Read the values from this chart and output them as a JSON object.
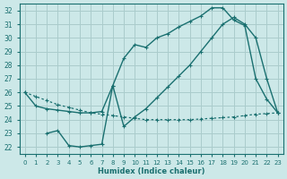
{
  "xlabel": "Humidex (Indice chaleur)",
  "bg_color": "#cce8e8",
  "grid_color": "#aacccc",
  "line_color": "#1a7070",
  "xlim": [
    -0.5,
    23.5
  ],
  "ylim": [
    21.5,
    32.5
  ],
  "xticks": [
    0,
    1,
    2,
    3,
    4,
    5,
    6,
    7,
    8,
    9,
    10,
    11,
    12,
    13,
    14,
    15,
    16,
    17,
    18,
    19,
    20,
    21,
    22,
    23
  ],
  "yticks": [
    22,
    23,
    24,
    25,
    26,
    27,
    28,
    29,
    30,
    31,
    32
  ],
  "line1_x": [
    0,
    1,
    2,
    3,
    4,
    5,
    6,
    7,
    8,
    9,
    10,
    11,
    12,
    13,
    14,
    15,
    16,
    17,
    18,
    19,
    20,
    21,
    22,
    23
  ],
  "line1_y": [
    26.0,
    25.7,
    25.4,
    25.1,
    24.9,
    24.7,
    24.5,
    24.4,
    24.3,
    24.2,
    24.1,
    24.0,
    24.0,
    24.0,
    24.0,
    24.0,
    24.05,
    24.1,
    24.15,
    24.2,
    24.3,
    24.4,
    24.45,
    24.5
  ],
  "line2_x": [
    0,
    1,
    2,
    3,
    4,
    5,
    6,
    7,
    8,
    9,
    10,
    11,
    12,
    13,
    14,
    15,
    16,
    17,
    18,
    19,
    20,
    21,
    22,
    23
  ],
  "line2_y": [
    26.0,
    25.0,
    24.8,
    24.7,
    24.6,
    24.5,
    24.5,
    24.6,
    26.5,
    28.5,
    29.5,
    29.3,
    30.0,
    30.3,
    30.8,
    31.2,
    31.6,
    32.2,
    32.2,
    31.3,
    30.9,
    27.0,
    25.5,
    24.5
  ],
  "line3_x": [
    2,
    3,
    4,
    5,
    6,
    7,
    8,
    9,
    10,
    11,
    12,
    13,
    14,
    15,
    16,
    17,
    18,
    19,
    20,
    21,
    22,
    23
  ],
  "line3_y": [
    23.0,
    23.2,
    22.1,
    22.0,
    22.1,
    22.2,
    26.5,
    23.5,
    24.2,
    24.8,
    25.6,
    26.4,
    27.2,
    28.0,
    29.0,
    30.0,
    31.0,
    31.5,
    31.0,
    30.0,
    27.0,
    24.5
  ]
}
